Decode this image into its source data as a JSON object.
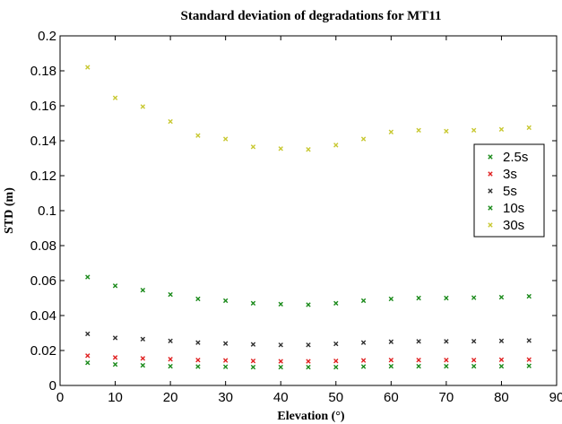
{
  "chart_data": {
    "type": "scatter",
    "title": "Standard deviation of degradations for MT11",
    "xlabel": "Elevation (°)",
    "ylabel": "STD (m)",
    "xlim": [
      0,
      90
    ],
    "ylim": [
      0,
      0.2
    ],
    "xticks": [
      0,
      10,
      20,
      30,
      40,
      50,
      60,
      70,
      80,
      90
    ],
    "yticks": [
      0,
      0.02,
      0.04,
      0.06,
      0.08,
      0.1,
      0.12,
      0.14,
      0.16,
      0.18,
      0.2
    ],
    "grid": false,
    "marker": "x",
    "legend": {
      "position": "right"
    },
    "x": [
      5,
      10,
      15,
      20,
      25,
      30,
      35,
      40,
      45,
      50,
      55,
      60,
      65,
      70,
      75,
      80,
      85
    ],
    "series": [
      {
        "name": "2.5s",
        "color": "#1a8a1a",
        "values": [
          0.013,
          0.012,
          0.0115,
          0.011,
          0.0108,
          0.0107,
          0.0105,
          0.0105,
          0.0105,
          0.0105,
          0.0108,
          0.011,
          0.011,
          0.011,
          0.011,
          0.011,
          0.0112
        ]
      },
      {
        "name": "3s",
        "color": "#e02020",
        "values": [
          0.017,
          0.016,
          0.0155,
          0.015,
          0.0145,
          0.0143,
          0.014,
          0.0138,
          0.0138,
          0.014,
          0.0143,
          0.0145,
          0.0145,
          0.0145,
          0.0145,
          0.0147,
          0.0148
        ]
      },
      {
        "name": "5s",
        "color": "#303030",
        "values": [
          0.0295,
          0.0272,
          0.0265,
          0.0255,
          0.0245,
          0.024,
          0.0235,
          0.0232,
          0.0232,
          0.0238,
          0.0245,
          0.025,
          0.0252,
          0.0252,
          0.0253,
          0.0255,
          0.0257
        ]
      },
      {
        "name": "10s",
        "color": "#1a8a1a",
        "values": [
          0.062,
          0.057,
          0.0545,
          0.052,
          0.0495,
          0.0485,
          0.047,
          0.0465,
          0.0462,
          0.047,
          0.0485,
          0.0495,
          0.05,
          0.05,
          0.0502,
          0.0505,
          0.051
        ]
      },
      {
        "name": "30s",
        "color": "#c8c832",
        "values": [
          0.182,
          0.1645,
          0.1595,
          0.151,
          0.143,
          0.141,
          0.1365,
          0.1355,
          0.135,
          0.1375,
          0.141,
          0.145,
          0.146,
          0.1455,
          0.146,
          0.1465,
          0.1475
        ]
      }
    ]
  }
}
